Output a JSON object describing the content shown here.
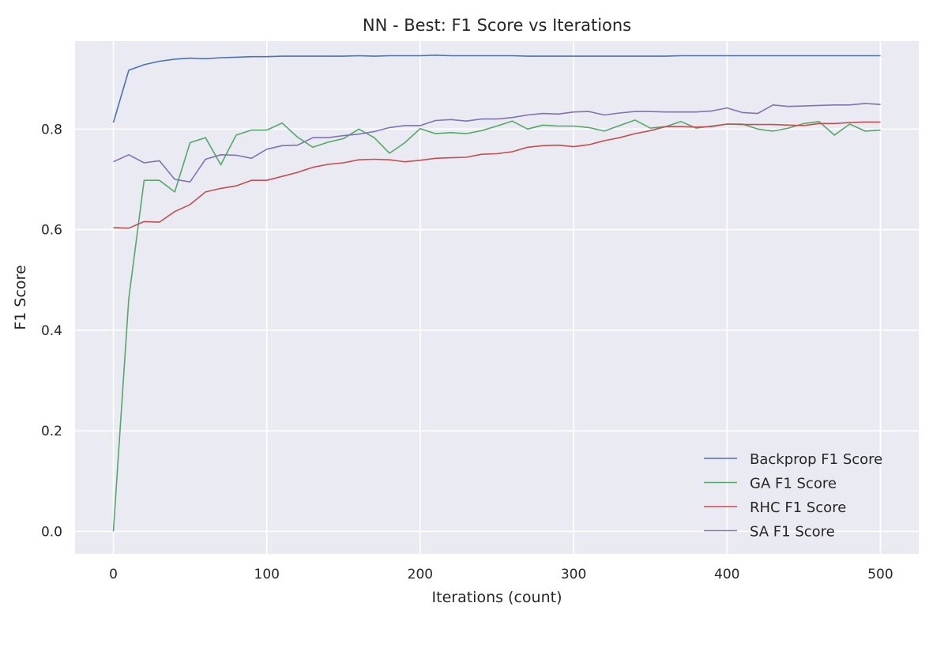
{
  "chart_data": {
    "type": "line",
    "title": "NN - Best: F1 Score vs Iterations",
    "xlabel": "Iterations (count)",
    "ylabel": "F1 Score",
    "xlim": [
      -25,
      525
    ],
    "ylim": [
      -0.045,
      0.975
    ],
    "xticks": [
      0,
      100,
      200,
      300,
      400,
      500
    ],
    "yticks": [
      0.0,
      0.2,
      0.4,
      0.6,
      0.8
    ],
    "xtick_labels": [
      "0",
      "100",
      "200",
      "300",
      "400",
      "500"
    ],
    "ytick_labels": [
      "0.0",
      "0.2",
      "0.4",
      "0.6",
      "0.8"
    ],
    "grid": true,
    "legend_position": "lower-right",
    "x": [
      0,
      10,
      20,
      30,
      40,
      50,
      60,
      70,
      80,
      90,
      100,
      110,
      120,
      130,
      140,
      150,
      160,
      170,
      180,
      190,
      200,
      210,
      220,
      230,
      240,
      250,
      260,
      270,
      280,
      290,
      300,
      310,
      320,
      330,
      340,
      350,
      360,
      370,
      380,
      390,
      400,
      410,
      420,
      430,
      440,
      450,
      460,
      470,
      480,
      490,
      500
    ],
    "series": [
      {
        "name": "Backprop F1 Score",
        "color": "#4c72b0",
        "values": [
          0.813,
          0.917,
          0.928,
          0.935,
          0.939,
          0.941,
          0.94,
          0.942,
          0.943,
          0.944,
          0.944,
          0.945,
          0.945,
          0.945,
          0.945,
          0.945,
          0.946,
          0.945,
          0.946,
          0.946,
          0.946,
          0.947,
          0.946,
          0.946,
          0.946,
          0.946,
          0.946,
          0.945,
          0.945,
          0.945,
          0.945,
          0.945,
          0.945,
          0.945,
          0.945,
          0.945,
          0.945,
          0.946,
          0.946,
          0.946,
          0.946,
          0.946,
          0.946,
          0.946,
          0.946,
          0.946,
          0.946,
          0.946,
          0.946,
          0.946,
          0.946
        ]
      },
      {
        "name": "GA F1 Score",
        "color": "#55a868",
        "values": [
          0.0,
          0.463,
          0.698,
          0.698,
          0.675,
          0.773,
          0.783,
          0.729,
          0.788,
          0.798,
          0.798,
          0.812,
          0.784,
          0.764,
          0.774,
          0.781,
          0.8,
          0.783,
          0.752,
          0.773,
          0.801,
          0.791,
          0.793,
          0.791,
          0.797,
          0.806,
          0.816,
          0.8,
          0.808,
          0.806,
          0.806,
          0.803,
          0.796,
          0.807,
          0.818,
          0.802,
          0.805,
          0.815,
          0.802,
          0.806,
          0.81,
          0.81,
          0.8,
          0.796,
          0.802,
          0.811,
          0.815,
          0.788,
          0.81,
          0.796,
          0.798
        ]
      },
      {
        "name": "RHC F1 Score",
        "color": "#c44e52",
        "values": [
          0.604,
          0.603,
          0.616,
          0.615,
          0.636,
          0.65,
          0.675,
          0.682,
          0.687,
          0.698,
          0.698,
          0.706,
          0.714,
          0.724,
          0.73,
          0.733,
          0.739,
          0.74,
          0.739,
          0.735,
          0.738,
          0.742,
          0.743,
          0.744,
          0.75,
          0.751,
          0.755,
          0.764,
          0.767,
          0.768,
          0.765,
          0.769,
          0.777,
          0.783,
          0.791,
          0.797,
          0.805,
          0.805,
          0.804,
          0.805,
          0.81,
          0.809,
          0.809,
          0.809,
          0.808,
          0.807,
          0.811,
          0.811,
          0.813,
          0.814,
          0.814
        ]
      },
      {
        "name": "SA F1 Score",
        "color": "#8172b2",
        "values": [
          0.735,
          0.749,
          0.733,
          0.737,
          0.7,
          0.695,
          0.74,
          0.749,
          0.748,
          0.742,
          0.76,
          0.767,
          0.768,
          0.783,
          0.783,
          0.787,
          0.79,
          0.795,
          0.803,
          0.807,
          0.807,
          0.817,
          0.819,
          0.816,
          0.82,
          0.82,
          0.823,
          0.828,
          0.831,
          0.83,
          0.834,
          0.835,
          0.828,
          0.832,
          0.835,
          0.835,
          0.834,
          0.834,
          0.834,
          0.836,
          0.842,
          0.833,
          0.831,
          0.848,
          0.845,
          0.846,
          0.847,
          0.848,
          0.848,
          0.851,
          0.849
        ]
      }
    ]
  }
}
